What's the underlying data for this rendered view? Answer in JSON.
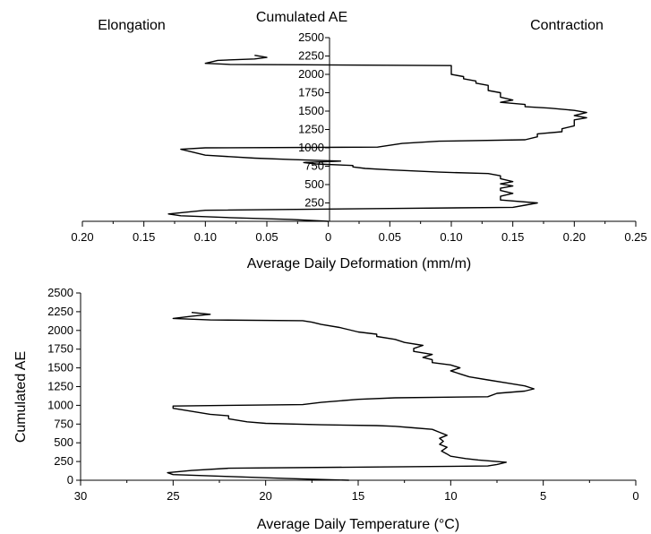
{
  "chart_data": [
    {
      "type": "line",
      "title": "",
      "headers": {
        "left": "Elongation",
        "center": "Cumulated AE",
        "right": "Contraction"
      },
      "xlabel": "Average Daily Deformation (mm/m)",
      "ylabel": "",
      "xlim": [
        0.2,
        0.25
      ],
      "x_orientation": "elongation (left, 0.20 → 0) and contraction (right, 0 → 0.25)",
      "ylim": [
        0,
        2500
      ],
      "x_tick_labels": [
        "0.20",
        "0.15",
        "0.10",
        "0.05",
        "0",
        "0.05",
        "0.10",
        "0.15",
        "0.20",
        "0.25"
      ],
      "x_tick_values": [
        -0.2,
        -0.15,
        -0.1,
        -0.05,
        0,
        0.05,
        0.1,
        0.15,
        0.2,
        0.25
      ],
      "y_ticks": [
        250,
        500,
        750,
        1000,
        1250,
        1500,
        1750,
        2000,
        2250,
        2500
      ],
      "series": [
        {
          "name": "",
          "points": [
            [
              0.0,
              0
            ],
            [
              -0.03,
              25
            ],
            [
              -0.08,
              50
            ],
            [
              -0.12,
              75
            ],
            [
              -0.13,
              100
            ],
            [
              -0.1,
              150
            ],
            [
              0.05,
              175
            ],
            [
              0.15,
              190
            ],
            [
              0.16,
              220
            ],
            [
              0.17,
              250
            ],
            [
              0.14,
              290
            ],
            [
              0.14,
              340
            ],
            [
              0.15,
              380
            ],
            [
              0.14,
              420
            ],
            [
              0.14,
              450
            ],
            [
              0.15,
              480
            ],
            [
              0.14,
              510
            ],
            [
              0.15,
              540
            ],
            [
              0.14,
              580
            ],
            [
              0.14,
              620
            ],
            [
              0.13,
              650
            ],
            [
              0.09,
              670
            ],
            [
              0.05,
              700
            ],
            [
              0.03,
              720
            ],
            [
              0.02,
              740
            ],
            [
              0.02,
              760
            ],
            [
              -0.01,
              780
            ],
            [
              -0.02,
              800
            ],
            [
              0.01,
              820
            ],
            [
              -0.03,
              840
            ],
            [
              -0.06,
              860
            ],
            [
              -0.1,
              900
            ],
            [
              -0.12,
              980
            ],
            [
              -0.1,
              1000
            ],
            [
              0.04,
              1010
            ],
            [
              0.06,
              1060
            ],
            [
              0.09,
              1090
            ],
            [
              0.16,
              1110
            ],
            [
              0.17,
              1150
            ],
            [
              0.17,
              1190
            ],
            [
              0.19,
              1220
            ],
            [
              0.19,
              1260
            ],
            [
              0.2,
              1300
            ],
            [
              0.2,
              1340
            ],
            [
              0.2,
              1380
            ],
            [
              0.21,
              1410
            ],
            [
              0.2,
              1440
            ],
            [
              0.21,
              1480
            ],
            [
              0.2,
              1510
            ],
            [
              0.18,
              1540
            ],
            [
              0.16,
              1560
            ],
            [
              0.16,
              1590
            ],
            [
              0.14,
              1620
            ],
            [
              0.15,
              1650
            ],
            [
              0.14,
              1690
            ],
            [
              0.14,
              1720
            ],
            [
              0.14,
              1750
            ],
            [
              0.13,
              1780
            ],
            [
              0.13,
              1810
            ],
            [
              0.13,
              1850
            ],
            [
              0.12,
              1880
            ],
            [
              0.12,
              1910
            ],
            [
              0.11,
              1940
            ],
            [
              0.11,
              1970
            ],
            [
              0.1,
              2000
            ],
            [
              0.1,
              2030
            ],
            [
              0.1,
              2060
            ],
            [
              0.1,
              2090
            ],
            [
              0.1,
              2120
            ],
            [
              -0.02,
              2130
            ],
            [
              -0.08,
              2135
            ],
            [
              -0.1,
              2150
            ],
            [
              -0.09,
              2190
            ],
            [
              -0.06,
              2210
            ],
            [
              -0.05,
              2230
            ],
            [
              -0.06,
              2260
            ]
          ]
        }
      ]
    },
    {
      "type": "line",
      "title": "",
      "xlabel": "Average Daily Temperature (°C)",
      "ylabel": "Cumulated AE",
      "xlim": [
        30,
        0
      ],
      "ylim": [
        0,
        2500
      ],
      "x_ticks": [
        30,
        25,
        20,
        15,
        10,
        5,
        0
      ],
      "y_ticks": [
        0,
        250,
        500,
        750,
        1000,
        1250,
        1500,
        1750,
        2000,
        2250,
        2500
      ],
      "series": [
        {
          "name": "",
          "points": [
            [
              15.5,
              0
            ],
            [
              19,
              25
            ],
            [
              22,
              50
            ],
            [
              25,
              75
            ],
            [
              25.3,
              100
            ],
            [
              24,
              130
            ],
            [
              22,
              160
            ],
            [
              8,
              190
            ],
            [
              7.5,
              210
            ],
            [
              7,
              240
            ],
            [
              8.5,
              270
            ],
            [
              9.2,
              290
            ],
            [
              10,
              320
            ],
            [
              10.2,
              350
            ],
            [
              10.5,
              390
            ],
            [
              10.2,
              440
            ],
            [
              10.6,
              480
            ],
            [
              10.4,
              520
            ],
            [
              10.6,
              560
            ],
            [
              10.2,
              600
            ],
            [
              10.6,
              640
            ],
            [
              11,
              680
            ],
            [
              12,
              700
            ],
            [
              13,
              720
            ],
            [
              14,
              730
            ],
            [
              17,
              740
            ],
            [
              20,
              760
            ],
            [
              21,
              780
            ],
            [
              22,
              820
            ],
            [
              22,
              860
            ],
            [
              23,
              880
            ],
            [
              24,
              920
            ],
            [
              25,
              960
            ],
            [
              25,
              990
            ],
            [
              22,
              1000
            ],
            [
              18,
              1010
            ],
            [
              17,
              1040
            ],
            [
              15,
              1080
            ],
            [
              13,
              1100
            ],
            [
              8,
              1115
            ],
            [
              7.5,
              1160
            ],
            [
              6,
              1190
            ],
            [
              5.5,
              1220
            ],
            [
              6,
              1260
            ],
            [
              7,
              1300
            ],
            [
              8,
              1340
            ],
            [
              9,
              1380
            ],
            [
              9.5,
              1420
            ],
            [
              10,
              1460
            ],
            [
              9.5,
              1500
            ],
            [
              10,
              1540
            ],
            [
              11,
              1570
            ],
            [
              11,
              1610
            ],
            [
              11.5,
              1640
            ],
            [
              11,
              1680
            ],
            [
              12,
              1720
            ],
            [
              12,
              1760
            ],
            [
              11.5,
              1800
            ],
            [
              12.5,
              1840
            ],
            [
              13,
              1880
            ],
            [
              14,
              1920
            ],
            [
              14,
              1950
            ],
            [
              15,
              1980
            ],
            [
              15.5,
              2010
            ],
            [
              16,
              2040
            ],
            [
              17,
              2080
            ],
            [
              17.5,
              2110
            ],
            [
              18,
              2130
            ],
            [
              23,
              2140
            ],
            [
              25,
              2160
            ],
            [
              24,
              2190
            ],
            [
              23,
              2215
            ],
            [
              24,
              2240
            ]
          ]
        }
      ]
    }
  ]
}
